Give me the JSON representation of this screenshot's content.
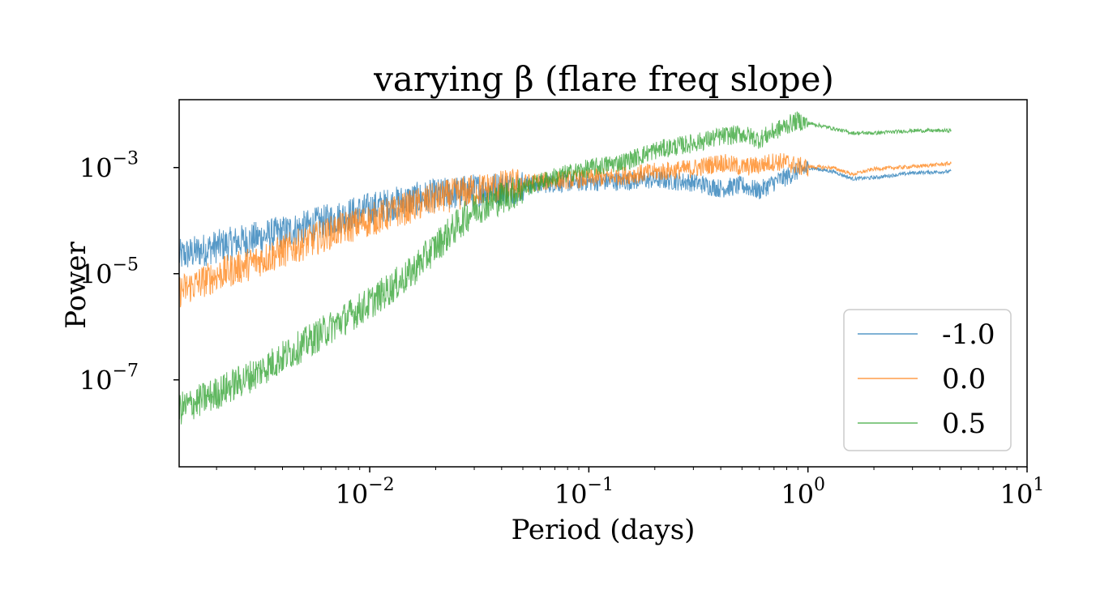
{
  "chart_data": {
    "type": "line",
    "title": "varying β (flare freq slope)",
    "xlabel": "Period (days)",
    "ylabel": "Power",
    "x_scale": "log",
    "y_scale": "log",
    "xlim": [
      0.00135,
      10
    ],
    "ylim": [
      2.3e-09,
      0.019
    ],
    "x_ticks": [
      {
        "value": 0.01,
        "base": "10",
        "exp": "−2"
      },
      {
        "value": 0.1,
        "base": "10",
        "exp": "−1"
      },
      {
        "value": 1,
        "base": "10",
        "exp": "0"
      },
      {
        "value": 10,
        "base": "10",
        "exp": "1"
      }
    ],
    "y_ticks": [
      {
        "value": 0.001,
        "base": "10",
        "exp": "−3"
      },
      {
        "value": 1e-05,
        "base": "10",
        "exp": "−5"
      },
      {
        "value": 1e-07,
        "base": "10",
        "exp": "−7"
      }
    ],
    "grid": false,
    "legend_position": "lower-right",
    "series": [
      {
        "name": "-1.0",
        "color": "#1f77b4",
        "opacity": 0.75,
        "x": [
          0.00135,
          0.002,
          0.003,
          0.005,
          0.007,
          0.01,
          0.015,
          0.02,
          0.03,
          0.05,
          0.07,
          0.1,
          0.15,
          0.2,
          0.3,
          0.4,
          0.5,
          0.6,
          0.7,
          0.8,
          0.9,
          1.0,
          1.3,
          1.6,
          2.0,
          3.0,
          4.5
        ],
        "y": [
          2.3e-05,
          3.5e-05,
          5e-05,
          8e-05,
          0.00012,
          0.00018,
          0.00026,
          0.00032,
          0.0004,
          0.00048,
          0.00053,
          0.00056,
          0.00058,
          0.00062,
          0.00055,
          0.00042,
          0.00048,
          0.00038,
          0.00055,
          0.0007,
          0.0009,
          0.001,
          0.00085,
          0.00062,
          0.00065,
          0.0008,
          0.00085
        ]
      },
      {
        "name": "0.0",
        "color": "#ff7f0e",
        "opacity": 0.75,
        "x": [
          0.00135,
          0.002,
          0.003,
          0.005,
          0.007,
          0.01,
          0.015,
          0.02,
          0.03,
          0.05,
          0.07,
          0.1,
          0.15,
          0.2,
          0.3,
          0.4,
          0.5,
          0.6,
          0.7,
          0.8,
          0.9,
          1.0,
          1.3,
          1.6,
          2.0,
          3.0,
          4.5
        ],
        "y": [
          5e-06,
          1e-05,
          1.8e-05,
          4e-05,
          7e-05,
          0.00011,
          0.00019,
          0.00028,
          0.0004,
          0.00052,
          0.0006,
          0.00065,
          0.00075,
          0.00085,
          0.001,
          0.0013,
          0.00105,
          0.00115,
          0.00135,
          0.0013,
          0.0011,
          0.00105,
          0.001,
          0.00075,
          0.00095,
          0.00105,
          0.0012
        ]
      },
      {
        "name": "0.5",
        "color": "#2ca02c",
        "opacity": 0.75,
        "x": [
          0.00135,
          0.002,
          0.003,
          0.005,
          0.007,
          0.01,
          0.015,
          0.02,
          0.03,
          0.05,
          0.07,
          0.1,
          0.15,
          0.2,
          0.3,
          0.4,
          0.5,
          0.6,
          0.7,
          0.8,
          0.9,
          1.0,
          1.3,
          1.6,
          2.0,
          3.0,
          4.5
        ],
        "y": [
          3e-08,
          6e-08,
          1.4e-07,
          5e-07,
          1.2e-06,
          3e-06,
          1e-05,
          3.5e-05,
          0.00018,
          0.00042,
          0.0007,
          0.001,
          0.0014,
          0.0022,
          0.003,
          0.004,
          0.0045,
          0.0035,
          0.005,
          0.0065,
          0.008,
          0.007,
          0.0055,
          0.0045,
          0.0045,
          0.005,
          0.005
        ]
      }
    ]
  }
}
